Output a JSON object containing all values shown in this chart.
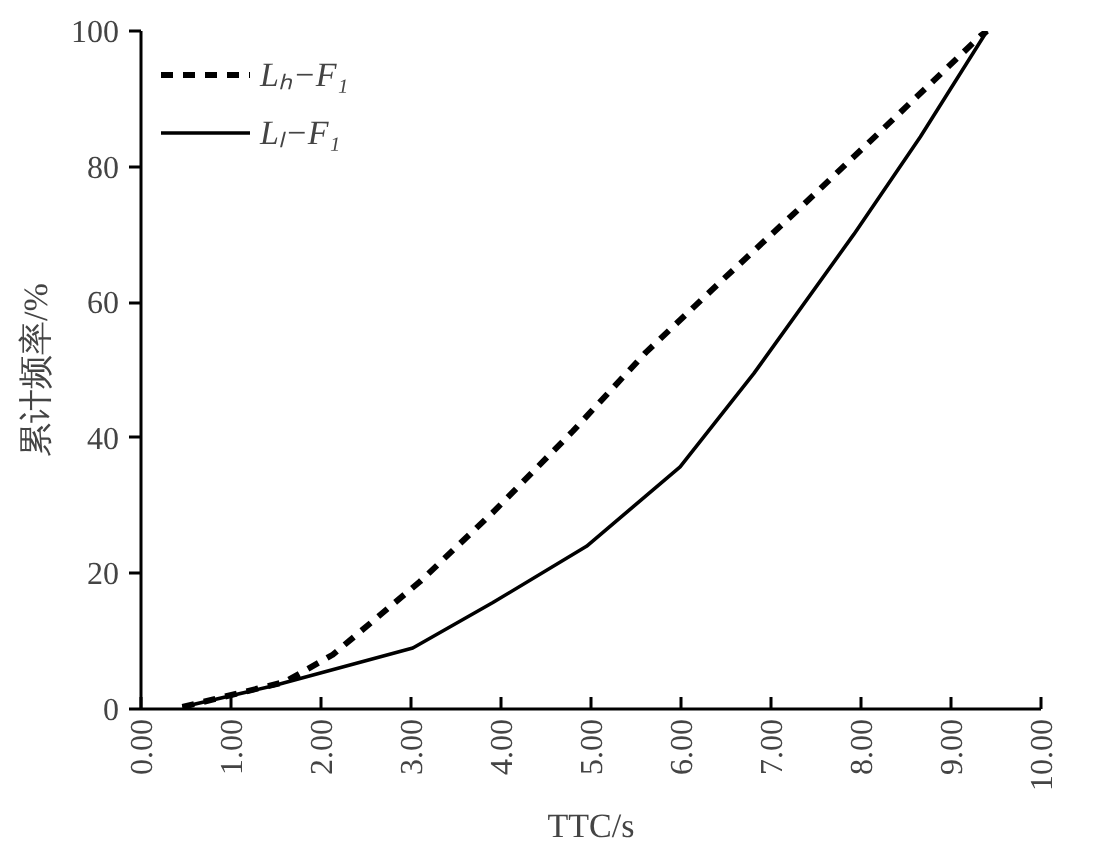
{
  "chart_data": {
    "type": "line",
    "xlabel": "TTC/s",
    "ylabel": "累计频率/%",
    "xlim": [
      0,
      10
    ],
    "ylim": [
      0,
      100
    ],
    "xticks": [
      {
        "value": 0,
        "label": "0.00"
      },
      {
        "value": 1,
        "label": "1.00"
      },
      {
        "value": 2,
        "label": "2.00"
      },
      {
        "value": 3,
        "label": "3.00"
      },
      {
        "value": 4,
        "label": "4.00"
      },
      {
        "value": 5,
        "label": "5.00"
      },
      {
        "value": 6,
        "label": "6.00"
      },
      {
        "value": 7,
        "label": "7.00"
      },
      {
        "value": 8,
        "label": "8.00"
      },
      {
        "value": 9,
        "label": "9.00"
      },
      {
        "value": 10,
        "label": "10.00"
      }
    ],
    "yticks": [
      0,
      20,
      40,
      60,
      80,
      100
    ],
    "grid": false,
    "legend": "top left",
    "marker": "none",
    "series": [
      {
        "name": "Lₕ−F₁",
        "color": "#000000",
        "line_style": "dashed",
        "x": [
          0.46,
          1.6,
          2.13,
          3.1,
          3.91,
          4.8,
          5.61,
          6.43,
          7.33,
          8.28,
          9.33,
          9.4
        ],
        "values": [
          0.3,
          4,
          8,
          18.8,
          29,
          41,
          52.6,
          62.9,
          74,
          86,
          99.3,
          100
        ]
      },
      {
        "name": "Lₗ−F₁",
        "color": "#000000",
        "line_style": "solid",
        "x": [
          0.46,
          1.46,
          3.02,
          3.91,
          4.95,
          5.99,
          6.81,
          7.92,
          8.66,
          9.4
        ],
        "values": [
          0.3,
          3.4,
          9,
          15.7,
          24,
          35.7,
          49.5,
          70,
          84.4,
          100
        ]
      }
    ]
  }
}
